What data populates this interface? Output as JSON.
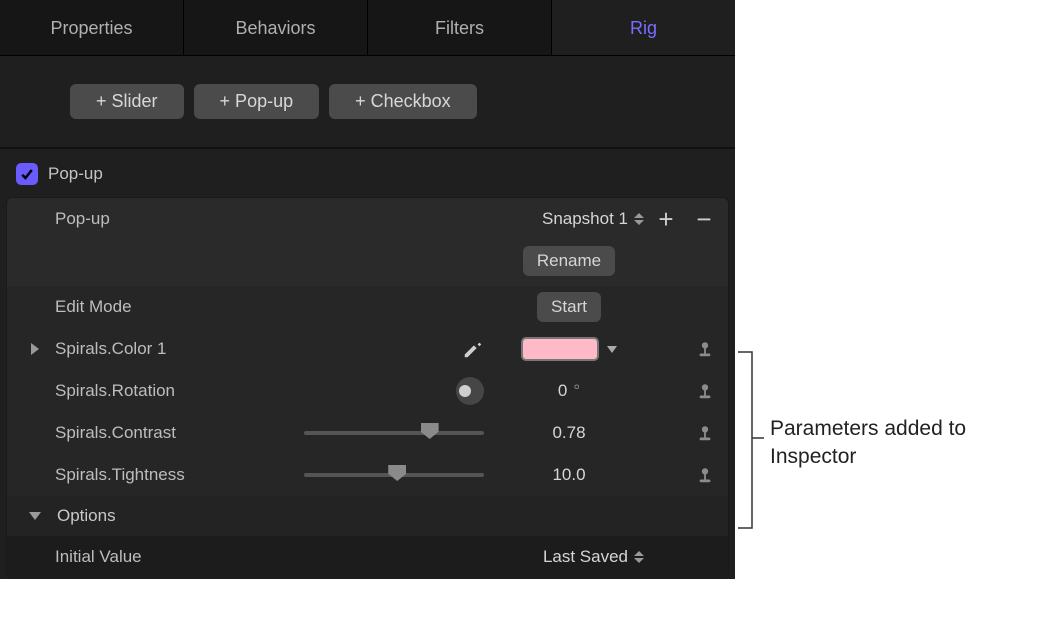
{
  "tabs": [
    "Properties",
    "Behaviors",
    "Filters",
    "Rig"
  ],
  "active_tab": "Rig",
  "accent_color": "#7a6cff",
  "add_buttons": {
    "slider": "+ Slider",
    "popup": "+ Pop-up",
    "checkbox": "+ Checkbox"
  },
  "section": {
    "checkbox_checked": true,
    "title": "Pop-up"
  },
  "popup_row": {
    "label": "Pop-up",
    "value": "Snapshot 1",
    "rename_label": "Rename"
  },
  "edit_mode": {
    "label": "Edit Mode",
    "button": "Start"
  },
  "params": {
    "color": {
      "label": "Spirals.Color 1",
      "swatch_color": "#ffb9c7"
    },
    "rotation": {
      "label": "Spirals.Rotation",
      "value": "0",
      "unit": "°"
    },
    "contrast": {
      "label": "Spirals.Contrast",
      "value": "0.78",
      "slider_pos": 0.72
    },
    "tightness": {
      "label": "Spirals.Tightness",
      "value": "10.0",
      "slider_pos": 0.52
    }
  },
  "options": {
    "header": "Options",
    "initial_value_label": "Initial Value",
    "initial_value": "Last Saved"
  },
  "annotation": "Parameters added to Inspector"
}
